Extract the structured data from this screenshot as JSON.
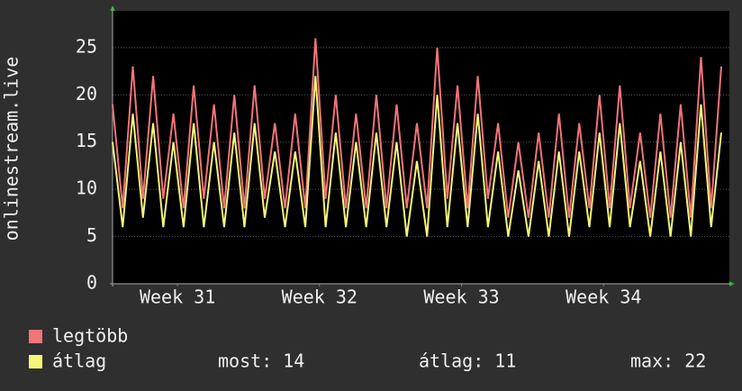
{
  "chart_data": {
    "type": "line",
    "y_label": "onlinestream.live",
    "x": [
      0,
      0.5,
      1,
      1.5,
      2,
      2.5,
      3,
      3.5,
      4,
      4.5,
      5,
      5.5,
      6,
      6.5,
      7,
      7.5,
      8,
      8.5,
      9,
      9.5,
      10,
      10.5,
      11,
      11.5,
      12,
      12.5,
      13,
      13.5,
      14,
      14.5,
      15,
      15.5,
      16,
      16.5,
      17,
      17.5,
      18,
      18.5,
      19,
      19.5,
      20,
      20.5,
      21,
      21.5,
      22,
      22.5,
      23,
      23.5,
      24,
      24.5,
      25,
      25.5,
      26,
      26.5,
      27,
      27.5,
      28,
      28.5,
      29,
      29.5,
      30
    ],
    "series": [
      {
        "name": "legtöbb",
        "color": "#f07478",
        "values": [
          19,
          8,
          23,
          9,
          22,
          9,
          18,
          8,
          21,
          9,
          19,
          8,
          20,
          8,
          21,
          9,
          17,
          8,
          18,
          8,
          26,
          9,
          20,
          8,
          18,
          8,
          20,
          8,
          19,
          8,
          17,
          8,
          25,
          9,
          21,
          8,
          22,
          9,
          17,
          7,
          15,
          7,
          16,
          7,
          18,
          7,
          17,
          8,
          20,
          8,
          21,
          8,
          16,
          7,
          18,
          7,
          19,
          7,
          24,
          8,
          23
        ]
      },
      {
        "name": "átlag",
        "color": "#f5f57a",
        "values": [
          15,
          6,
          18,
          7,
          17,
          6,
          15,
          6,
          17,
          6,
          15,
          6,
          16,
          6,
          17,
          7,
          14,
          6,
          14,
          6,
          22,
          6,
          16,
          6,
          15,
          6,
          16,
          6,
          15,
          5,
          13,
          5,
          20,
          6,
          17,
          6,
          18,
          6,
          14,
          5,
          12,
          5,
          13,
          5,
          14,
          5,
          14,
          6,
          16,
          6,
          17,
          6,
          13,
          5,
          14,
          5,
          15,
          5,
          19,
          6,
          16
        ]
      }
    ],
    "xlim": [
      0,
      30.4
    ],
    "xticks": [
      {
        "value": 3.2,
        "label": "Week 31"
      },
      {
        "value": 10.2,
        "label": "Week 32"
      },
      {
        "value": 17.2,
        "label": "Week 33"
      },
      {
        "value": 24.2,
        "label": "Week 34"
      }
    ],
    "ylim": [
      0,
      28.9
    ],
    "yticks": [
      0,
      5,
      10,
      15,
      20,
      25
    ],
    "grid": true,
    "legend_stats": [
      "most: 14",
      "átlag: 11",
      "max: 22"
    ]
  }
}
